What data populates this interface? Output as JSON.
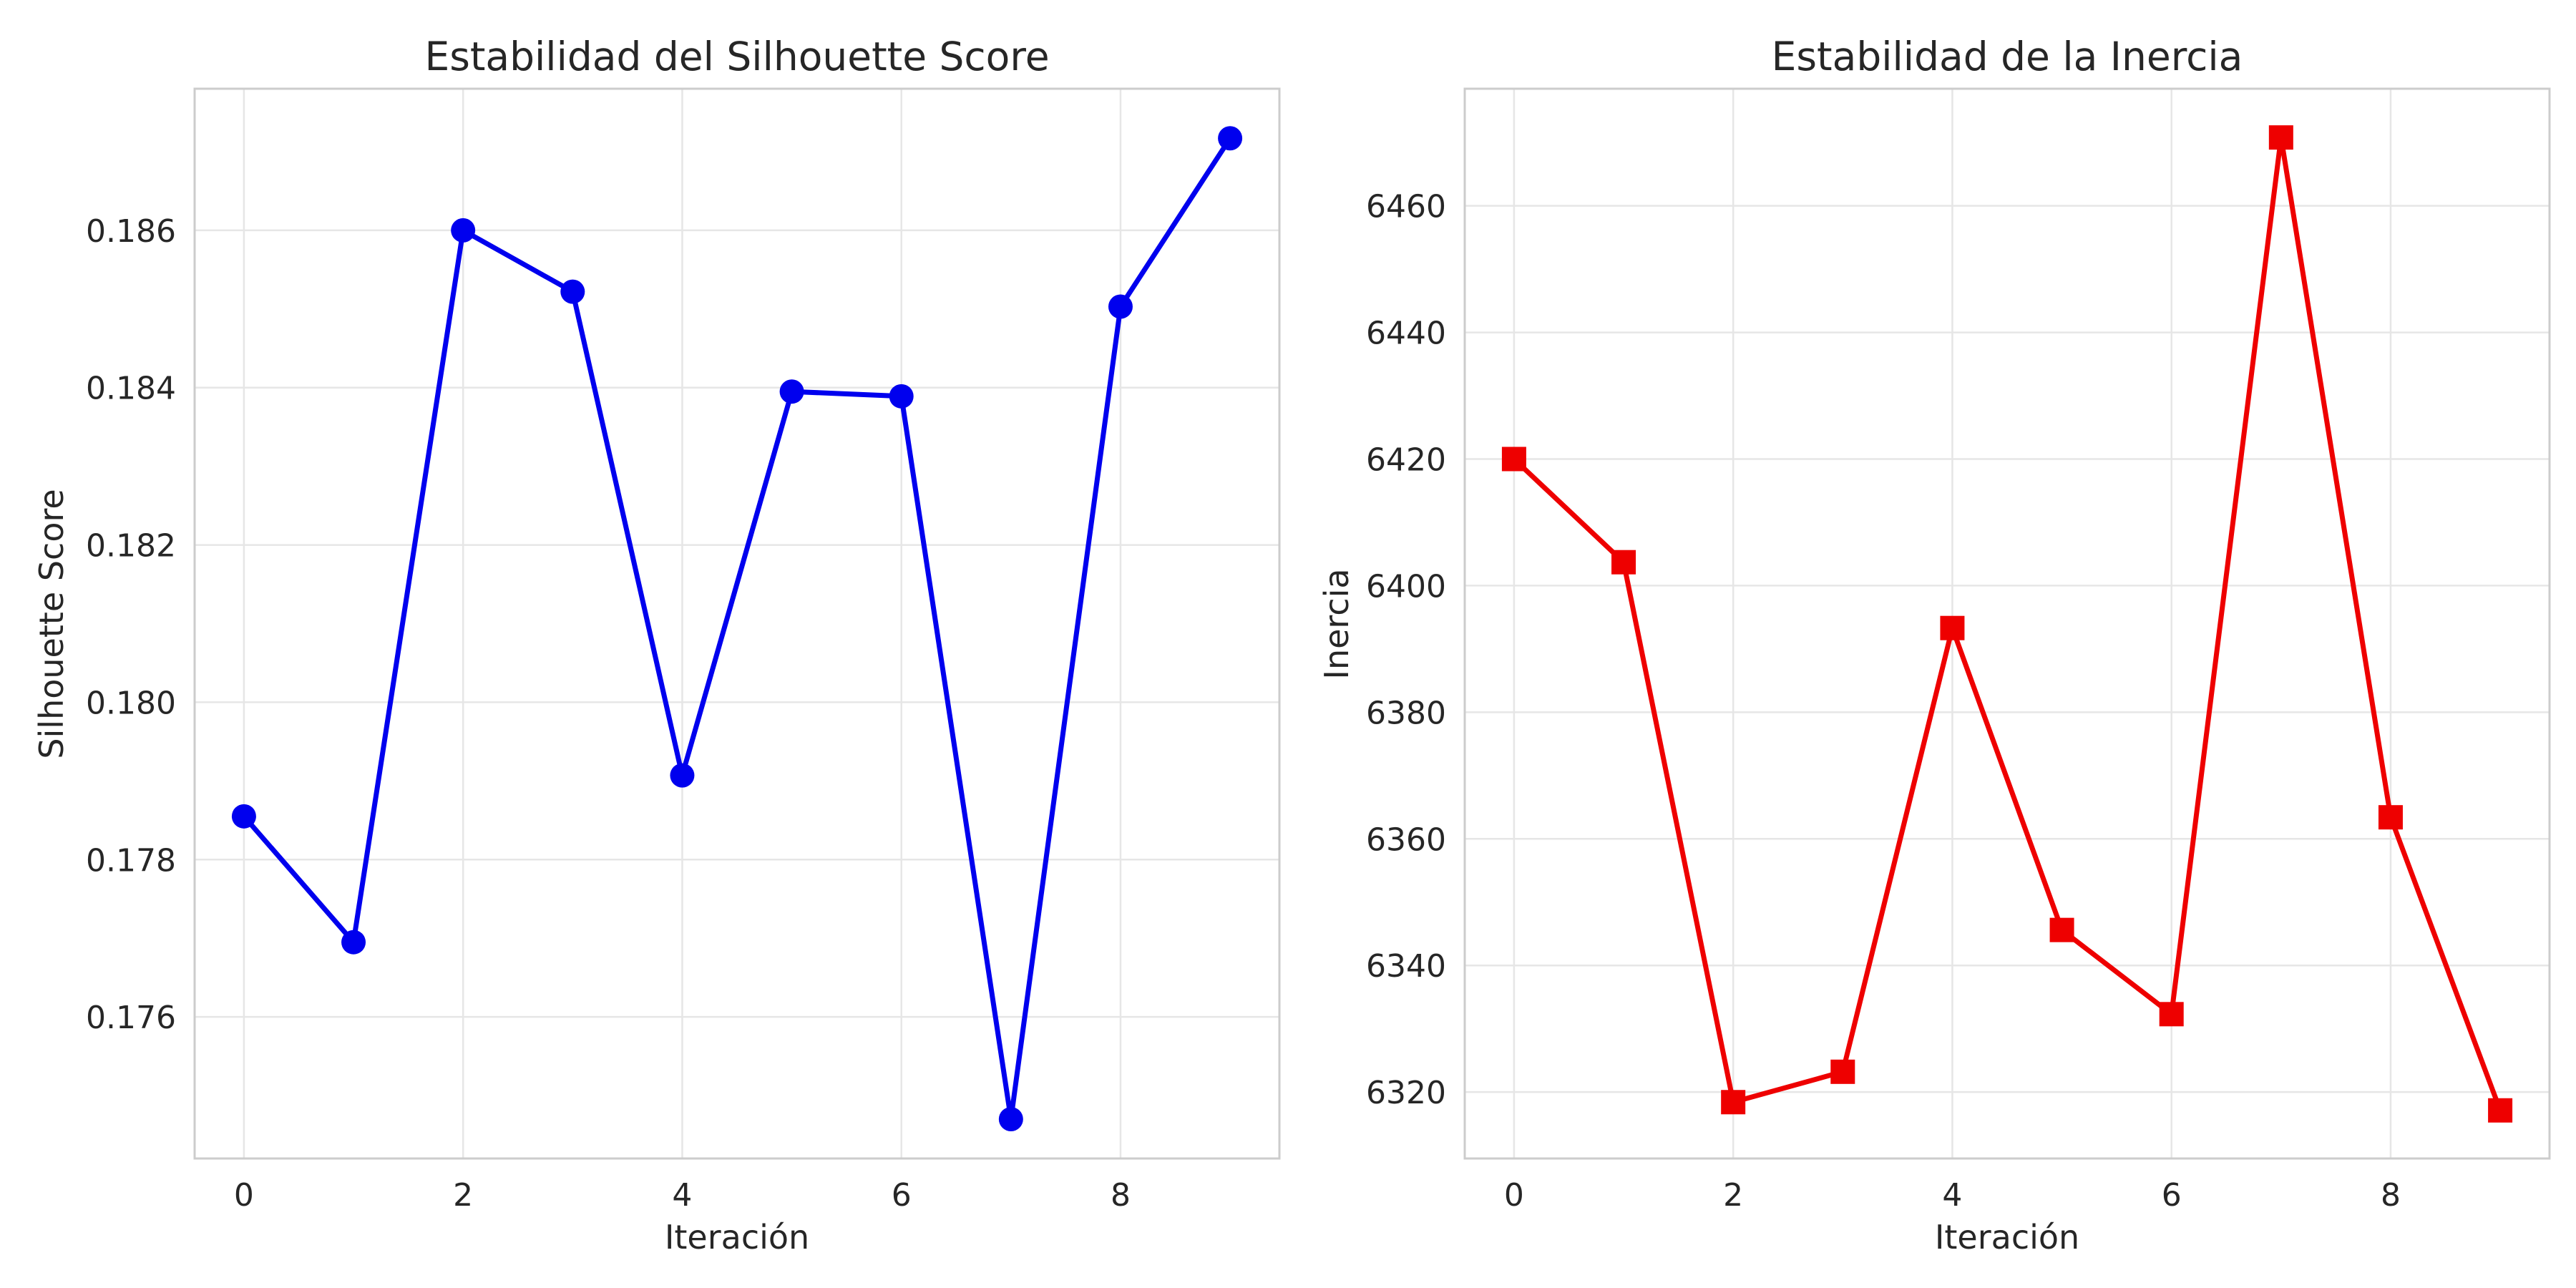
{
  "chart_data": [
    {
      "type": "line",
      "title": "Estabilidad del Silhouette Score",
      "xlabel": "Iteración",
      "ylabel": "Silhouette Score",
      "xlim": [
        -0.45,
        9.45
      ],
      "ylim": [
        0.1742,
        0.1878
      ],
      "xticks": [
        0,
        2,
        4,
        6,
        8
      ],
      "yticks": [
        0.176,
        0.178,
        0.18,
        0.182,
        0.184,
        0.186
      ],
      "ytick_labels": [
        "0.176",
        "0.178",
        "0.180",
        "0.182",
        "0.184",
        "0.186"
      ],
      "grid": true,
      "marker": "circle",
      "color": "#0000ee",
      "series": [
        {
          "x": [
            0,
            1,
            2,
            3,
            4,
            5,
            6,
            7,
            8,
            9
          ],
          "values": [
            0.17855,
            0.17695,
            0.186,
            0.18522,
            0.17907,
            0.18395,
            0.18389,
            0.1747,
            0.18503,
            0.18717
          ]
        }
      ]
    },
    {
      "type": "line",
      "title": "Estabilidad de la Inercia",
      "xlabel": "Iteración",
      "ylabel": "Inercia",
      "xlim": [
        -0.45,
        9.45
      ],
      "ylim": [
        6309.5,
        6478.5
      ],
      "xticks": [
        0,
        2,
        4,
        6,
        8
      ],
      "yticks": [
        6320,
        6340,
        6360,
        6380,
        6400,
        6420,
        6440,
        6460
      ],
      "ytick_labels": [
        "6320",
        "6340",
        "6360",
        "6380",
        "6400",
        "6420",
        "6440",
        "6460"
      ],
      "grid": true,
      "marker": "square",
      "color": "#ee0000",
      "series": [
        {
          "x": [
            0,
            1,
            2,
            3,
            4,
            5,
            6,
            7,
            8,
            9
          ],
          "values": [
            6420.0,
            6403.7,
            6318.4,
            6323.2,
            6393.3,
            6345.6,
            6332.3,
            6470.8,
            6363.4,
            6317.1
          ]
        }
      ]
    }
  ]
}
